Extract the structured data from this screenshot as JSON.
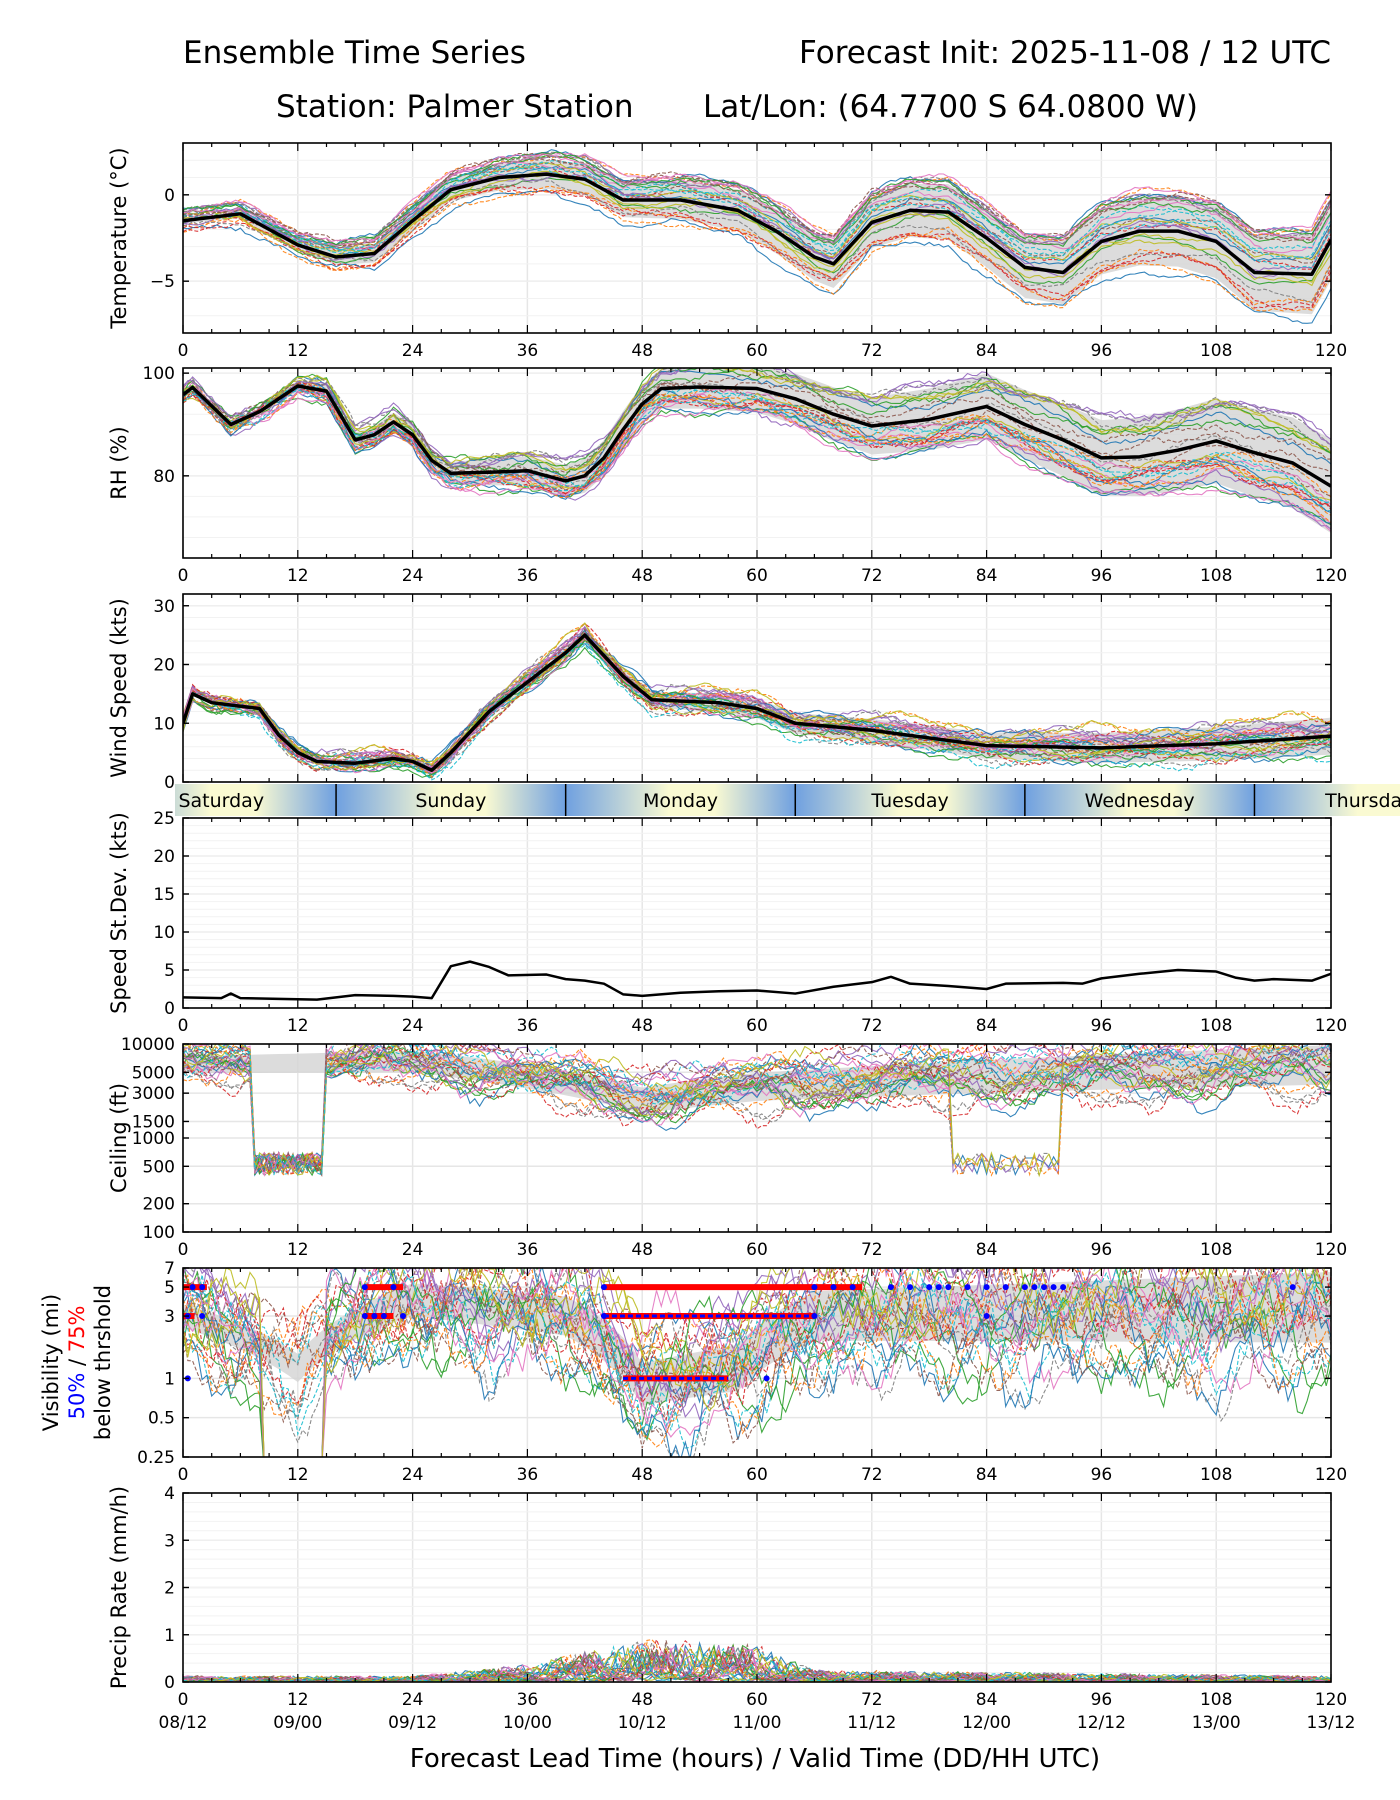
{
  "header": {
    "title": "Ensemble Time Series",
    "init": "Forecast Init: 2025-11-08 / 12 UTC",
    "station": "Station: Palmer Station",
    "latlon": "Lat/Lon: (64.7700 S 64.0800 W)"
  },
  "colors": {
    "mean": "#000000",
    "spread": "#d3d3d3",
    "vis50": "#0000ff",
    "vis75": "#ff0000",
    "members": [
      "#1f77b4",
      "#ff7f0e",
      "#2ca02c",
      "#d62728",
      "#9467bd",
      "#8c564b",
      "#e377c2",
      "#7f7f7f",
      "#bcbd22",
      "#17becf"
    ],
    "day_band_light": "#fafad2",
    "day_band_dark": "#6fa0e0",
    "grid": "#e6e6e6"
  },
  "days": {
    "labels": [
      "Saturday",
      "Sunday",
      "Monday",
      "Tuesday",
      "Wednesday",
      "Thursday"
    ],
    "boundary_hours": [
      16,
      40,
      64,
      88,
      112
    ]
  },
  "xaxis": {
    "label": "Forecast Lead Time (hours) / Valid Time (DD/HH UTC)",
    "ticks": [
      0,
      12,
      24,
      36,
      48,
      60,
      72,
      84,
      96,
      108,
      120
    ],
    "valid_times": [
      "08/12",
      "09/00",
      "09/12",
      "10/00",
      "10/12",
      "11/00",
      "11/12",
      "12/00",
      "12/12",
      "13/00",
      "13/12"
    ]
  },
  "chart_data": [
    {
      "type": "line",
      "id": "temp",
      "ylabel": "Temperature (°C)",
      "ylim": [
        -8,
        3
      ],
      "yticks": [
        0,
        -5
      ],
      "ytick_labels": [
        "0",
        "−5"
      ],
      "member_count": 30,
      "noise": 0.45,
      "spread_growth": 2.2,
      "mean": [
        [
          0,
          -1.5
        ],
        [
          6,
          -1.1
        ],
        [
          12,
          -2.9
        ],
        [
          16,
          -3.6
        ],
        [
          20,
          -3.4
        ],
        [
          24,
          -1.5
        ],
        [
          28,
          0.3
        ],
        [
          33,
          1.0
        ],
        [
          38,
          1.2
        ],
        [
          42,
          0.9
        ],
        [
          46,
          -0.3
        ],
        [
          52,
          -0.3
        ],
        [
          58,
          -0.9
        ],
        [
          62,
          -2.1
        ],
        [
          66,
          -3.6
        ],
        [
          68,
          -4.0
        ],
        [
          72,
          -1.6
        ],
        [
          76,
          -0.9
        ],
        [
          80,
          -1.0
        ],
        [
          84,
          -2.5
        ],
        [
          88,
          -4.2
        ],
        [
          92,
          -4.5
        ],
        [
          96,
          -2.7
        ],
        [
          100,
          -2.1
        ],
        [
          104,
          -2.1
        ],
        [
          108,
          -2.7
        ],
        [
          112,
          -4.5
        ],
        [
          118,
          -4.6
        ],
        [
          120,
          -2.6
        ]
      ]
    },
    {
      "type": "line",
      "id": "rh",
      "ylabel": "RH (%)",
      "ylim": [
        64,
        101
      ],
      "yticks": [
        100,
        80
      ],
      "ytick_labels": [
        "100",
        "80"
      ],
      "member_count": 30,
      "noise": 2.2,
      "spread_growth": 9,
      "mean": [
        [
          0,
          95.8
        ],
        [
          1,
          97.2
        ],
        [
          5,
          90
        ],
        [
          8,
          92.5
        ],
        [
          12,
          97.5
        ],
        [
          15,
          96.5
        ],
        [
          18,
          87
        ],
        [
          20,
          88
        ],
        [
          22,
          90.5
        ],
        [
          24,
          88
        ],
        [
          26,
          83
        ],
        [
          28,
          80.5
        ],
        [
          32,
          80.7
        ],
        [
          36,
          81
        ],
        [
          40,
          79
        ],
        [
          42,
          80
        ],
        [
          44,
          83.5
        ],
        [
          46,
          89
        ],
        [
          48,
          94
        ],
        [
          50,
          97
        ],
        [
          54,
          97.3
        ],
        [
          60,
          97
        ],
        [
          64,
          95
        ],
        [
          68,
          92
        ],
        [
          72,
          89.7
        ],
        [
          78,
          91
        ],
        [
          84,
          93.5
        ],
        [
          88,
          90
        ],
        [
          92,
          87
        ],
        [
          96,
          83.5
        ],
        [
          100,
          83.7
        ],
        [
          104,
          85
        ],
        [
          108,
          86.8
        ],
        [
          112,
          84.5
        ],
        [
          116,
          82.5
        ],
        [
          120,
          78
        ]
      ]
    },
    {
      "type": "line",
      "id": "wind",
      "ylabel": "Wind Speed (kts)",
      "ylim": [
        0,
        32
      ],
      "yticks": [
        0,
        10,
        20,
        30
      ],
      "ytick_labels": [
        "0",
        "10",
        "20",
        "30"
      ],
      "member_count": 30,
      "noise": 2.0,
      "spread_growth": 3,
      "mean": [
        [
          0,
          10
        ],
        [
          1,
          15
        ],
        [
          3,
          13.5
        ],
        [
          8,
          12.5
        ],
        [
          10,
          8
        ],
        [
          12,
          5
        ],
        [
          14,
          3.5
        ],
        [
          18,
          3.2
        ],
        [
          22,
          4
        ],
        [
          24,
          3.5
        ],
        [
          26,
          2
        ],
        [
          28,
          5
        ],
        [
          32,
          12
        ],
        [
          36,
          17
        ],
        [
          40,
          22
        ],
        [
          42,
          25
        ],
        [
          46,
          18
        ],
        [
          49,
          14
        ],
        [
          56,
          13.5
        ],
        [
          60,
          12.5
        ],
        [
          64,
          10
        ],
        [
          72,
          8.8
        ],
        [
          84,
          6.2
        ],
        [
          96,
          5.8
        ],
        [
          108,
          6.5
        ],
        [
          120,
          7.8
        ]
      ]
    },
    {
      "type": "line",
      "id": "stdev",
      "ylabel": "Speed St.Dev. (kts)",
      "ylim": [
        0,
        25
      ],
      "yticks": [
        0,
        5,
        10,
        15,
        20,
        25
      ],
      "ytick_labels": [
        "0",
        "5",
        "10",
        "15",
        "20",
        "25"
      ],
      "member_count": 0,
      "mean": [
        [
          0,
          1.4
        ],
        [
          4,
          1.3
        ],
        [
          5,
          1.9
        ],
        [
          6,
          1.3
        ],
        [
          10,
          1.2
        ],
        [
          14,
          1.1
        ],
        [
          18,
          1.7
        ],
        [
          22,
          1.6
        ],
        [
          24,
          1.5
        ],
        [
          26,
          1.3
        ],
        [
          28,
          5.5
        ],
        [
          30,
          6.1
        ],
        [
          32,
          5.4
        ],
        [
          34,
          4.3
        ],
        [
          38,
          4.4
        ],
        [
          40,
          3.8
        ],
        [
          42,
          3.6
        ],
        [
          44,
          3.2
        ],
        [
          46,
          1.8
        ],
        [
          48,
          1.6
        ],
        [
          52,
          2.0
        ],
        [
          56,
          2.2
        ],
        [
          60,
          2.3
        ],
        [
          64,
          1.9
        ],
        [
          68,
          2.8
        ],
        [
          72,
          3.4
        ],
        [
          74,
          4.1
        ],
        [
          76,
          3.2
        ],
        [
          80,
          2.9
        ],
        [
          84,
          2.5
        ],
        [
          86,
          3.2
        ],
        [
          92,
          3.3
        ],
        [
          94,
          3.2
        ],
        [
          96,
          3.9
        ],
        [
          100,
          4.5
        ],
        [
          104,
          5.0
        ],
        [
          108,
          4.8
        ],
        [
          110,
          4.0
        ],
        [
          112,
          3.6
        ],
        [
          114,
          3.8
        ],
        [
          118,
          3.6
        ],
        [
          120,
          4.5
        ]
      ]
    },
    {
      "type": "line",
      "id": "ceiling",
      "scale": "log",
      "ylabel": "Ceiling (ft)",
      "ylim": [
        100,
        10000
      ],
      "yticks": [
        10000,
        5000,
        3000,
        1500,
        1000,
        500,
        200,
        100
      ],
      "ytick_labels": [
        "10000",
        "5000",
        "3000",
        "1500",
        "1000",
        "500",
        "200",
        "100"
      ],
      "member_count": 30,
      "noise": 0.28,
      "spread_growth": 0.2,
      "mean": [
        [
          0,
          6000
        ],
        [
          24,
          6500
        ],
        [
          48,
          2500
        ],
        [
          60,
          3500
        ],
        [
          120,
          6000
        ]
      ]
    },
    {
      "type": "line",
      "id": "vis",
      "scale": "log",
      "ylabel": "Visibility (mi)",
      "ylabel_extra": [
        "50%",
        "/",
        "75%",
        "below thrshold"
      ],
      "ylim": [
        0.25,
        7
      ],
      "yticks": [
        7,
        5,
        3,
        1,
        0.5,
        0.25
      ],
      "ytick_labels": [
        "7",
        "5",
        "3",
        "1",
        "0.5",
        "0.25"
      ],
      "member_count": 30,
      "noise": 0.55,
      "spread_growth": 0.3,
      "mean": [
        [
          0,
          3
        ],
        [
          12,
          1.2
        ],
        [
          24,
          4
        ],
        [
          40,
          3
        ],
        [
          48,
          0.9
        ],
        [
          58,
          1.2
        ],
        [
          66,
          3
        ],
        [
          120,
          3.5
        ]
      ],
      "bars_75": [
        {
          "y": 5,
          "from": 0,
          "to": 2.5
        },
        {
          "y": 3,
          "from": 0,
          "to": 1.2
        },
        {
          "y": 5,
          "from": 19,
          "to": 23
        },
        {
          "y": 3,
          "from": 19,
          "to": 22
        },
        {
          "y": 5,
          "from": 44,
          "to": 71
        },
        {
          "y": 3,
          "from": 44,
          "to": 66
        },
        {
          "y": 1,
          "from": 46,
          "to": 57
        }
      ],
      "bars_50": [
        {
          "y": 5,
          "from": 44,
          "to": 66
        },
        {
          "y": 3,
          "from": 44,
          "to": 66
        },
        {
          "y": 1,
          "from": 46,
          "to": 57
        }
      ],
      "points_50": [
        [
          1,
          5
        ],
        [
          2,
          5
        ],
        [
          0.5,
          3
        ],
        [
          2,
          3
        ],
        [
          0.5,
          1
        ],
        [
          19,
          5
        ],
        [
          22,
          5
        ],
        [
          19,
          3
        ],
        [
          20,
          3
        ],
        [
          21,
          3
        ],
        [
          23,
          3
        ],
        [
          44,
          5
        ],
        [
          66,
          5
        ],
        [
          68,
          5
        ],
        [
          70,
          5
        ],
        [
          74,
          5
        ],
        [
          76,
          5
        ],
        [
          78,
          5
        ],
        [
          79,
          5
        ],
        [
          80,
          5
        ],
        [
          82,
          5
        ],
        [
          84,
          5
        ],
        [
          86,
          5
        ],
        [
          88,
          5
        ],
        [
          89,
          5
        ],
        [
          90,
          5
        ],
        [
          91,
          5
        ],
        [
          92,
          5
        ],
        [
          116,
          5
        ],
        [
          44,
          3
        ],
        [
          66,
          3
        ],
        [
          84,
          3
        ],
        [
          61,
          1
        ]
      ]
    },
    {
      "type": "line",
      "id": "precip",
      "ylabel": "Precip Rate (mm/h)",
      "ylim": [
        0,
        4
      ],
      "yticks": [
        0,
        1,
        2,
        3,
        4
      ],
      "ytick_labels": [
        "0",
        "1",
        "2",
        "3",
        "4"
      ],
      "member_count": 30,
      "noise": 0.0,
      "spread_growth": 0,
      "mean": [
        [
          0,
          0.1
        ],
        [
          24,
          0.1
        ],
        [
          36,
          0.3
        ],
        [
          48,
          0.7
        ],
        [
          60,
          0.6
        ],
        [
          66,
          0.2
        ],
        [
          120,
          0.1
        ]
      ]
    }
  ]
}
